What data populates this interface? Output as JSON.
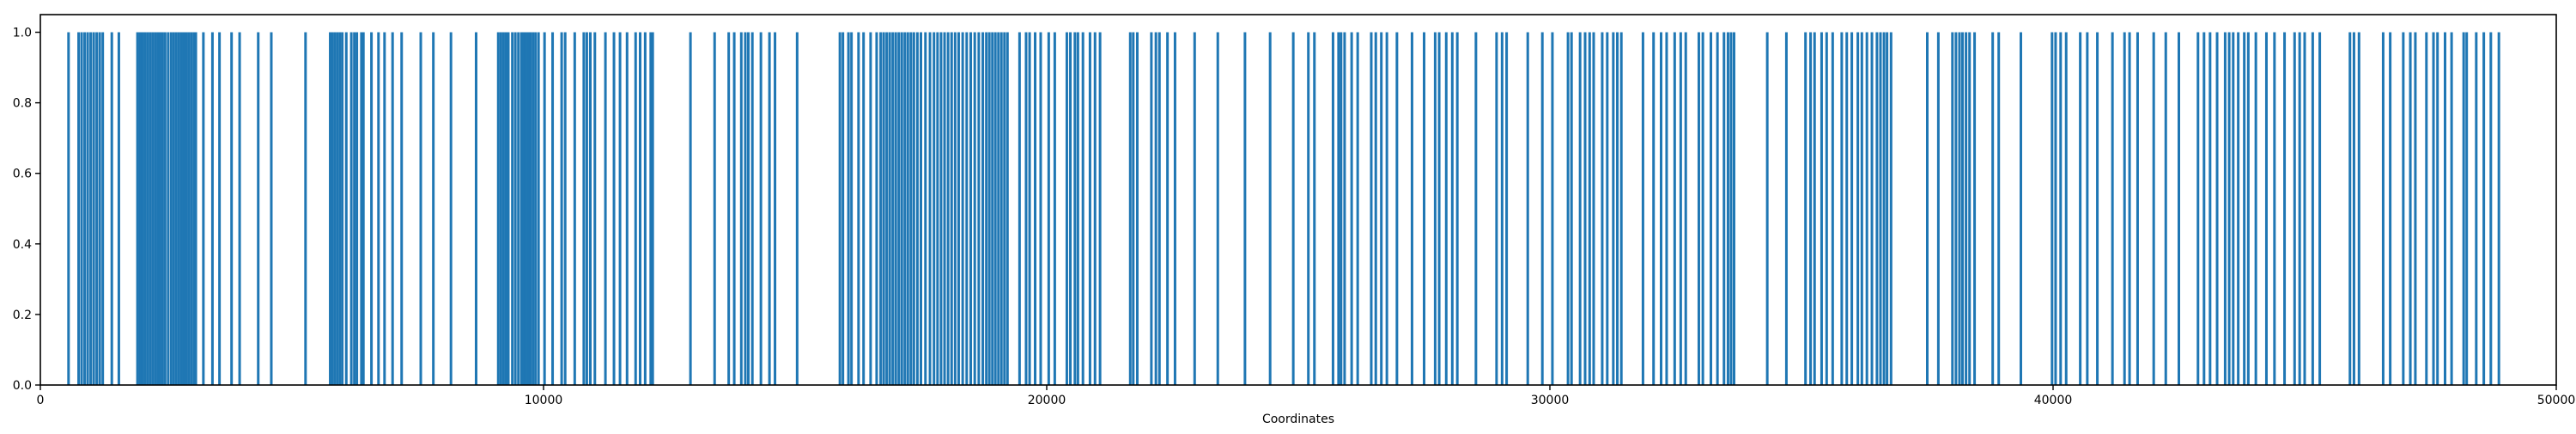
{
  "chart_data": {
    "type": "bar",
    "title": "",
    "xlabel": "Coordinates",
    "ylabel": "",
    "xlim": [
      0,
      50000
    ],
    "ylim": [
      0,
      1.05
    ],
    "grid": false,
    "legend": "none",
    "color": "#1f77b4",
    "x_ticks": [
      {
        "value": 0,
        "label": "0"
      },
      {
        "value": 10000,
        "label": "10000"
      },
      {
        "value": 20000,
        "label": "20000"
      },
      {
        "value": 30000,
        "label": "30000"
      },
      {
        "value": 40000,
        "label": "40000"
      },
      {
        "value": 50000,
        "label": "50000"
      }
    ],
    "y_ticks": [
      {
        "value": 0.0,
        "label": "0.0"
      },
      {
        "value": 0.2,
        "label": "0.2"
      },
      {
        "value": 0.4,
        "label": "0.4"
      },
      {
        "value": 0.6,
        "label": "0.6"
      },
      {
        "value": 0.8,
        "label": "0.8"
      },
      {
        "value": 1.0,
        "label": "1.0"
      }
    ],
    "series": [
      {
        "value": 1,
        "x": [
          560,
          760,
          820,
          880,
          940,
          1000,
          1060,
          1120,
          1180,
          1240,
          1420,
          1560,
          1930,
          1980,
          2030,
          2080,
          2130,
          2180,
          2230,
          2280,
          2330,
          2380,
          2430,
          2480,
          2540,
          2600,
          2650,
          2700,
          2750,
          2800,
          2850,
          2900,
          2950,
          3000,
          3050,
          3090,
          3240,
          3420,
          3560,
          3800,
          3960,
          4330,
          4590,
          5270,
          5760,
          5800,
          5850,
          5900,
          5950,
          6000,
          6080,
          6180,
          6240,
          6290,
          6380,
          6420,
          6580,
          6720,
          6840,
          7000,
          7180,
          7560,
          7810,
          8160,
          8660,
          9100,
          9150,
          9200,
          9250,
          9300,
          9380,
          9440,
          9500,
          9560,
          9600,
          9650,
          9700,
          9740,
          9790,
          9840,
          9900,
          10020,
          10180,
          10360,
          10430,
          10620,
          10800,
          10860,
          10930,
          11020,
          11230,
          11400,
          11520,
          11660,
          11830,
          11920,
          12020,
          12130,
          12170,
          12920,
          13400,
          13680,
          13790,
          13930,
          14010,
          14070,
          14150,
          14320,
          14490,
          14600,
          15040,
          15890,
          15950,
          16060,
          16120,
          16260,
          16360,
          16500,
          16620,
          16700,
          16760,
          16820,
          16880,
          16940,
          17000,
          17060,
          17120,
          17180,
          17240,
          17300,
          17360,
          17430,
          17500,
          17590,
          17680,
          17760,
          17830,
          17900,
          17970,
          18040,
          18110,
          18180,
          18250,
          18330,
          18410,
          18490,
          18570,
          18650,
          18730,
          18800,
          18860,
          18920,
          18980,
          19040,
          19100,
          19160,
          19220,
          19460,
          19590,
          19660,
          19770,
          19880,
          20040,
          20160,
          20400,
          20470,
          20560,
          20620,
          20720,
          20860,
          20960,
          21060,
          21660,
          21720,
          21800,
          22080,
          22170,
          22240,
          22400,
          22550,
          22940,
          23400,
          23940,
          24440,
          24900,
          25200,
          25320,
          25690,
          25800,
          25850,
          25920,
          26060,
          26180,
          26450,
          26540,
          26650,
          26760,
          26960,
          27260,
          27500,
          27720,
          27800,
          27940,
          28060,
          28160,
          28530,
          28940,
          29050,
          29140,
          29560,
          29850,
          30050,
          30360,
          30430,
          30600,
          30700,
          30790,
          30870,
          31040,
          31140,
          31260,
          31340,
          31420,
          31850,
          32060,
          32210,
          32320,
          32480,
          32600,
          32700,
          32960,
          33040,
          33200,
          33330,
          33460,
          33540,
          33600,
          33660,
          34320,
          34700,
          35080,
          35180,
          35260,
          35400,
          35500,
          35620,
          35800,
          35900,
          36000,
          36120,
          36200,
          36300,
          36400,
          36500,
          36570,
          36640,
          36700,
          36780,
          37500,
          37720,
          38000,
          38070,
          38140,
          38200,
          38270,
          38340,
          38440,
          38800,
          38920,
          39360,
          39980,
          40050,
          40150,
          40260,
          40540,
          40680,
          40880,
          41180,
          41420,
          41520,
          41680,
          42000,
          42240,
          42500,
          42880,
          43000,
          43120,
          43260,
          43420,
          43500,
          43580,
          43680,
          43800,
          43880,
          44030,
          44240,
          44400,
          44600,
          44800,
          44900,
          45000,
          45160,
          45300,
          45900,
          45980,
          46080,
          46560,
          46700,
          46960,
          47100,
          47200,
          47420,
          47560,
          47640,
          47790,
          47920,
          48160,
          48220,
          48410,
          48560,
          48700,
          48860
        ]
      }
    ]
  }
}
